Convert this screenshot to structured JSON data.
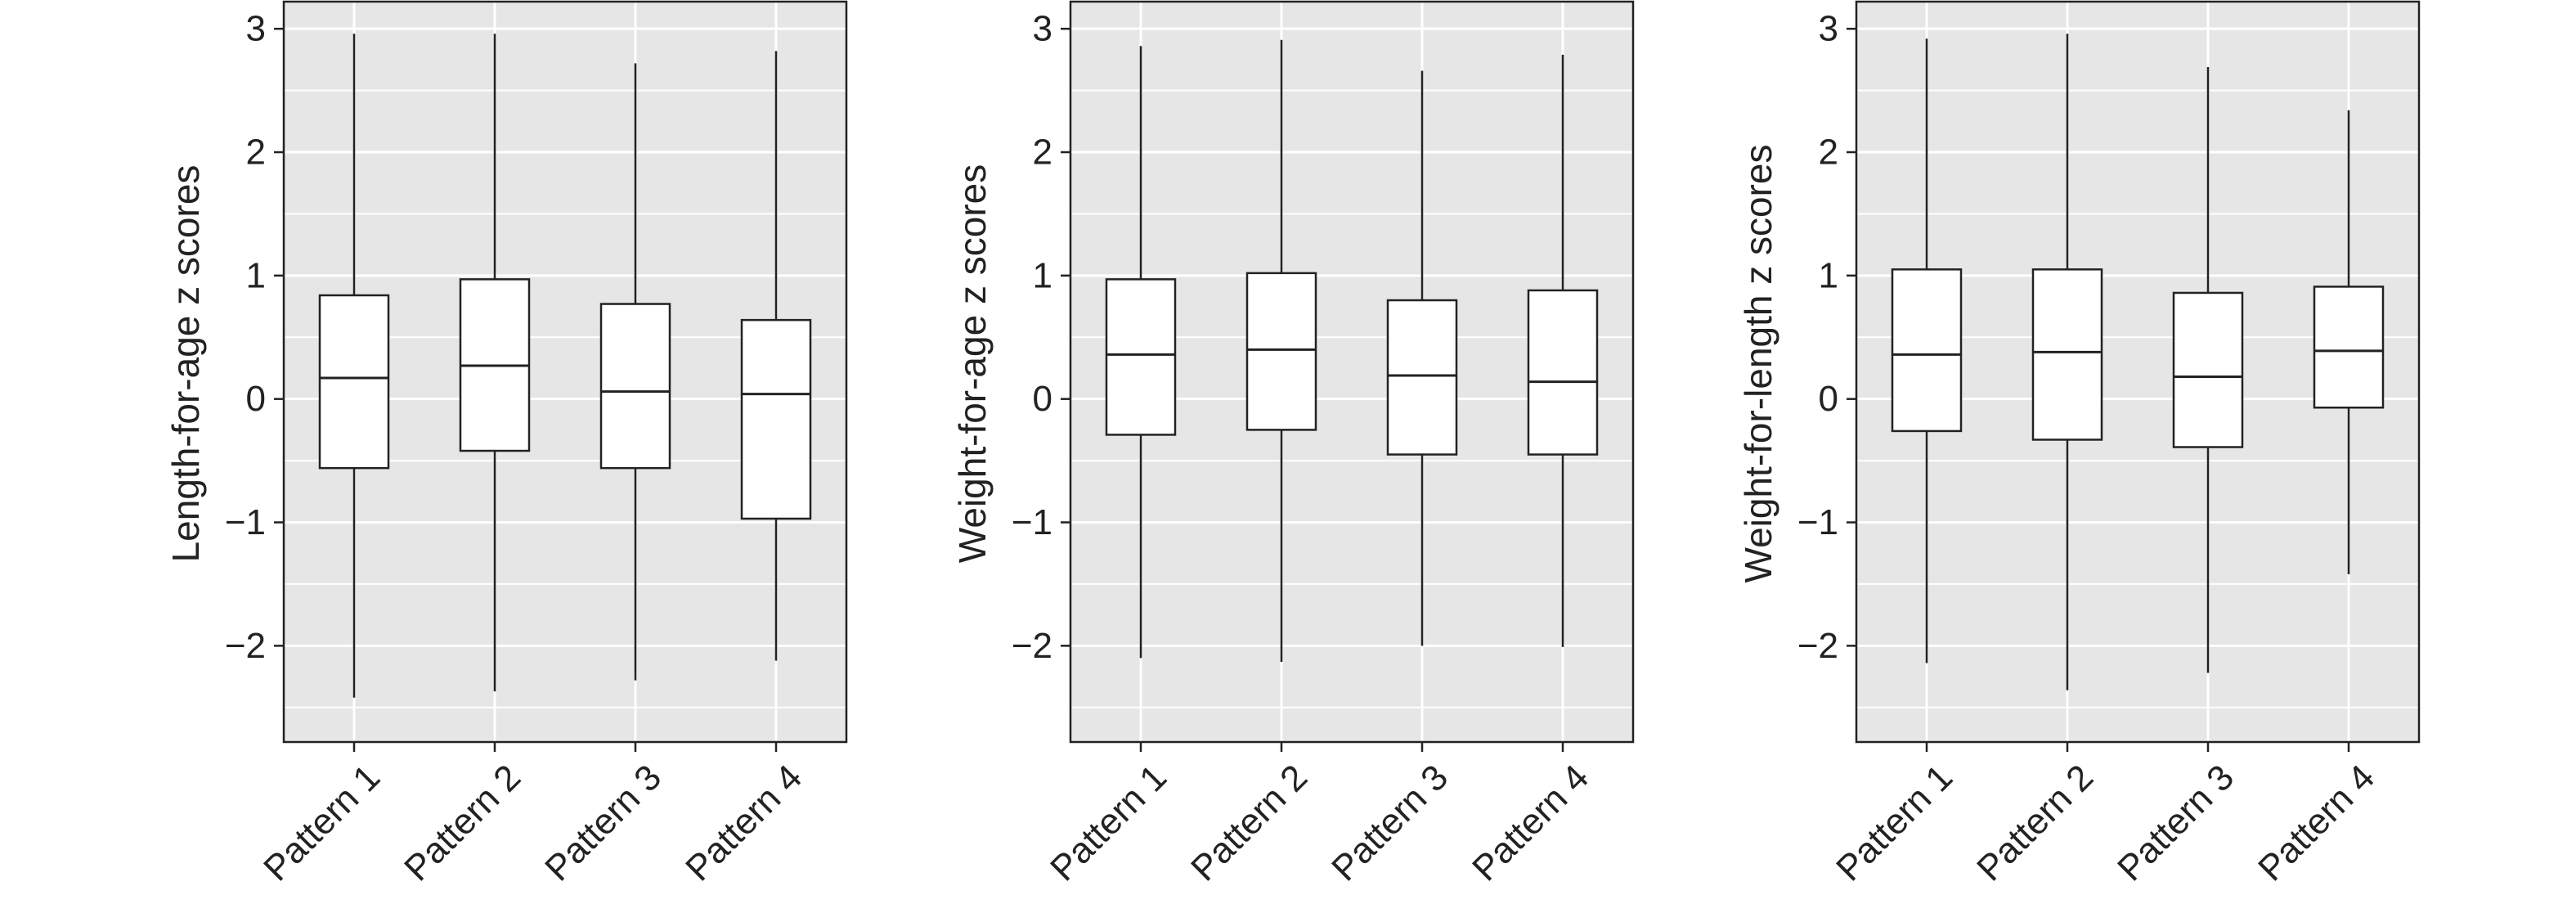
{
  "chart_data": [
    {
      "type": "box",
      "ylabel": "Length-for-age z scores",
      "categories": [
        "Pattern 1",
        "Pattern 2",
        "Pattern 3",
        "Pattern 4"
      ],
      "yticks": [
        -2,
        -1,
        0,
        1,
        2,
        3
      ],
      "ylim": [
        -2.78,
        3.22
      ],
      "grid": true,
      "boxes": [
        {
          "min": -2.42,
          "q1": -0.56,
          "median": 0.17,
          "q3": 0.84,
          "max": 2.96
        },
        {
          "min": -2.37,
          "q1": -0.42,
          "median": 0.27,
          "q3": 0.97,
          "max": 2.96
        },
        {
          "min": -2.28,
          "q1": -0.56,
          "median": 0.06,
          "q3": 0.77,
          "max": 2.72
        },
        {
          "min": -2.12,
          "q1": -0.97,
          "median": 0.04,
          "q3": 0.64,
          "max": 2.82
        }
      ]
    },
    {
      "type": "box",
      "ylabel": "Weight-for-age z scores",
      "categories": [
        "Pattern 1",
        "Pattern 2",
        "Pattern 3",
        "Pattern 4"
      ],
      "yticks": [
        -2,
        -1,
        0,
        1,
        2,
        3
      ],
      "ylim": [
        -2.78,
        3.22
      ],
      "grid": true,
      "boxes": [
        {
          "min": -2.1,
          "q1": -0.29,
          "median": 0.36,
          "q3": 0.97,
          "max": 2.86
        },
        {
          "min": -2.13,
          "q1": -0.25,
          "median": 0.4,
          "q3": 1.02,
          "max": 2.91
        },
        {
          "min": -2.0,
          "q1": -0.45,
          "median": 0.19,
          "q3": 0.8,
          "max": 2.66
        },
        {
          "min": -2.01,
          "q1": -0.45,
          "median": 0.14,
          "q3": 0.88,
          "max": 2.79
        }
      ]
    },
    {
      "type": "box",
      "ylabel": "Weight-for-length z scores",
      "categories": [
        "Pattern 1",
        "Pattern 2",
        "Pattern 3",
        "Pattern 4"
      ],
      "yticks": [
        -2,
        -1,
        0,
        1,
        2,
        3
      ],
      "ylim": [
        -2.78,
        3.22
      ],
      "grid": true,
      "boxes": [
        {
          "min": -2.14,
          "q1": -0.26,
          "median": 0.36,
          "q3": 1.05,
          "max": 2.92
        },
        {
          "min": -2.36,
          "q1": -0.33,
          "median": 0.38,
          "q3": 1.05,
          "max": 2.96
        },
        {
          "min": -2.22,
          "q1": -0.39,
          "median": 0.18,
          "q3": 0.86,
          "max": 2.69
        },
        {
          "min": -1.42,
          "q1": -0.07,
          "median": 0.39,
          "q3": 0.91,
          "max": 2.34
        }
      ]
    }
  ],
  "style": {
    "panel_background": "#e6e6e6",
    "grid_color": "#ffffff",
    "box_fill": "#ffffff",
    "line_color": "#222222"
  }
}
